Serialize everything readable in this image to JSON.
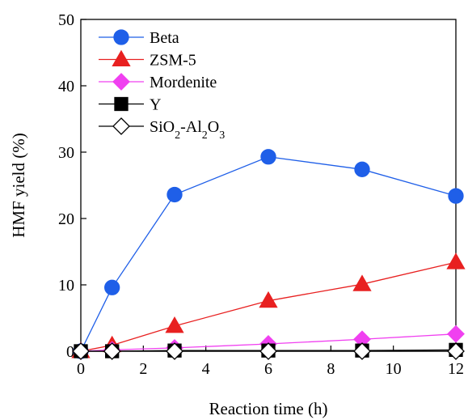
{
  "chart_data": {
    "type": "line",
    "xlabel": "Reaction time (h)",
    "ylabel": "HMF yield (%)",
    "xlim": [
      0,
      12
    ],
    "ylim": [
      0,
      50
    ],
    "x_ticks": [
      0,
      2,
      4,
      6,
      8,
      10,
      12
    ],
    "y_ticks": [
      0,
      10,
      20,
      30,
      40,
      50
    ],
    "x": [
      0,
      1,
      3,
      6,
      9,
      12
    ],
    "grid": false,
    "legend_position": "top-left",
    "series": [
      {
        "name": "Beta",
        "marker": "circle",
        "color": "#1f5fe8",
        "fill": "#1f5fe8",
        "values": [
          0,
          9.6,
          23.6,
          29.3,
          27.4,
          23.4
        ]
      },
      {
        "name": "ZSM-5",
        "marker": "triangle",
        "color": "#e82020",
        "fill": "#e82020",
        "values": [
          0,
          0.9,
          3.8,
          7.6,
          10.1,
          13.4
        ]
      },
      {
        "name": "Mordenite",
        "marker": "diamond",
        "color": "#f040f0",
        "fill": "#f040f0",
        "values": [
          0,
          0.2,
          0.5,
          1.1,
          1.8,
          2.6
        ]
      },
      {
        "name": "Y",
        "marker": "square",
        "color": "#000000",
        "fill": "#000000",
        "values": [
          0,
          0,
          0.1,
          0.1,
          0.1,
          0.2
        ]
      },
      {
        "name": "SiO2-Al2O3",
        "marker": "diamond-open",
        "color": "#000000",
        "fill": "#ffffff",
        "values": [
          0,
          0,
          0,
          0,
          0,
          0
        ]
      }
    ]
  }
}
